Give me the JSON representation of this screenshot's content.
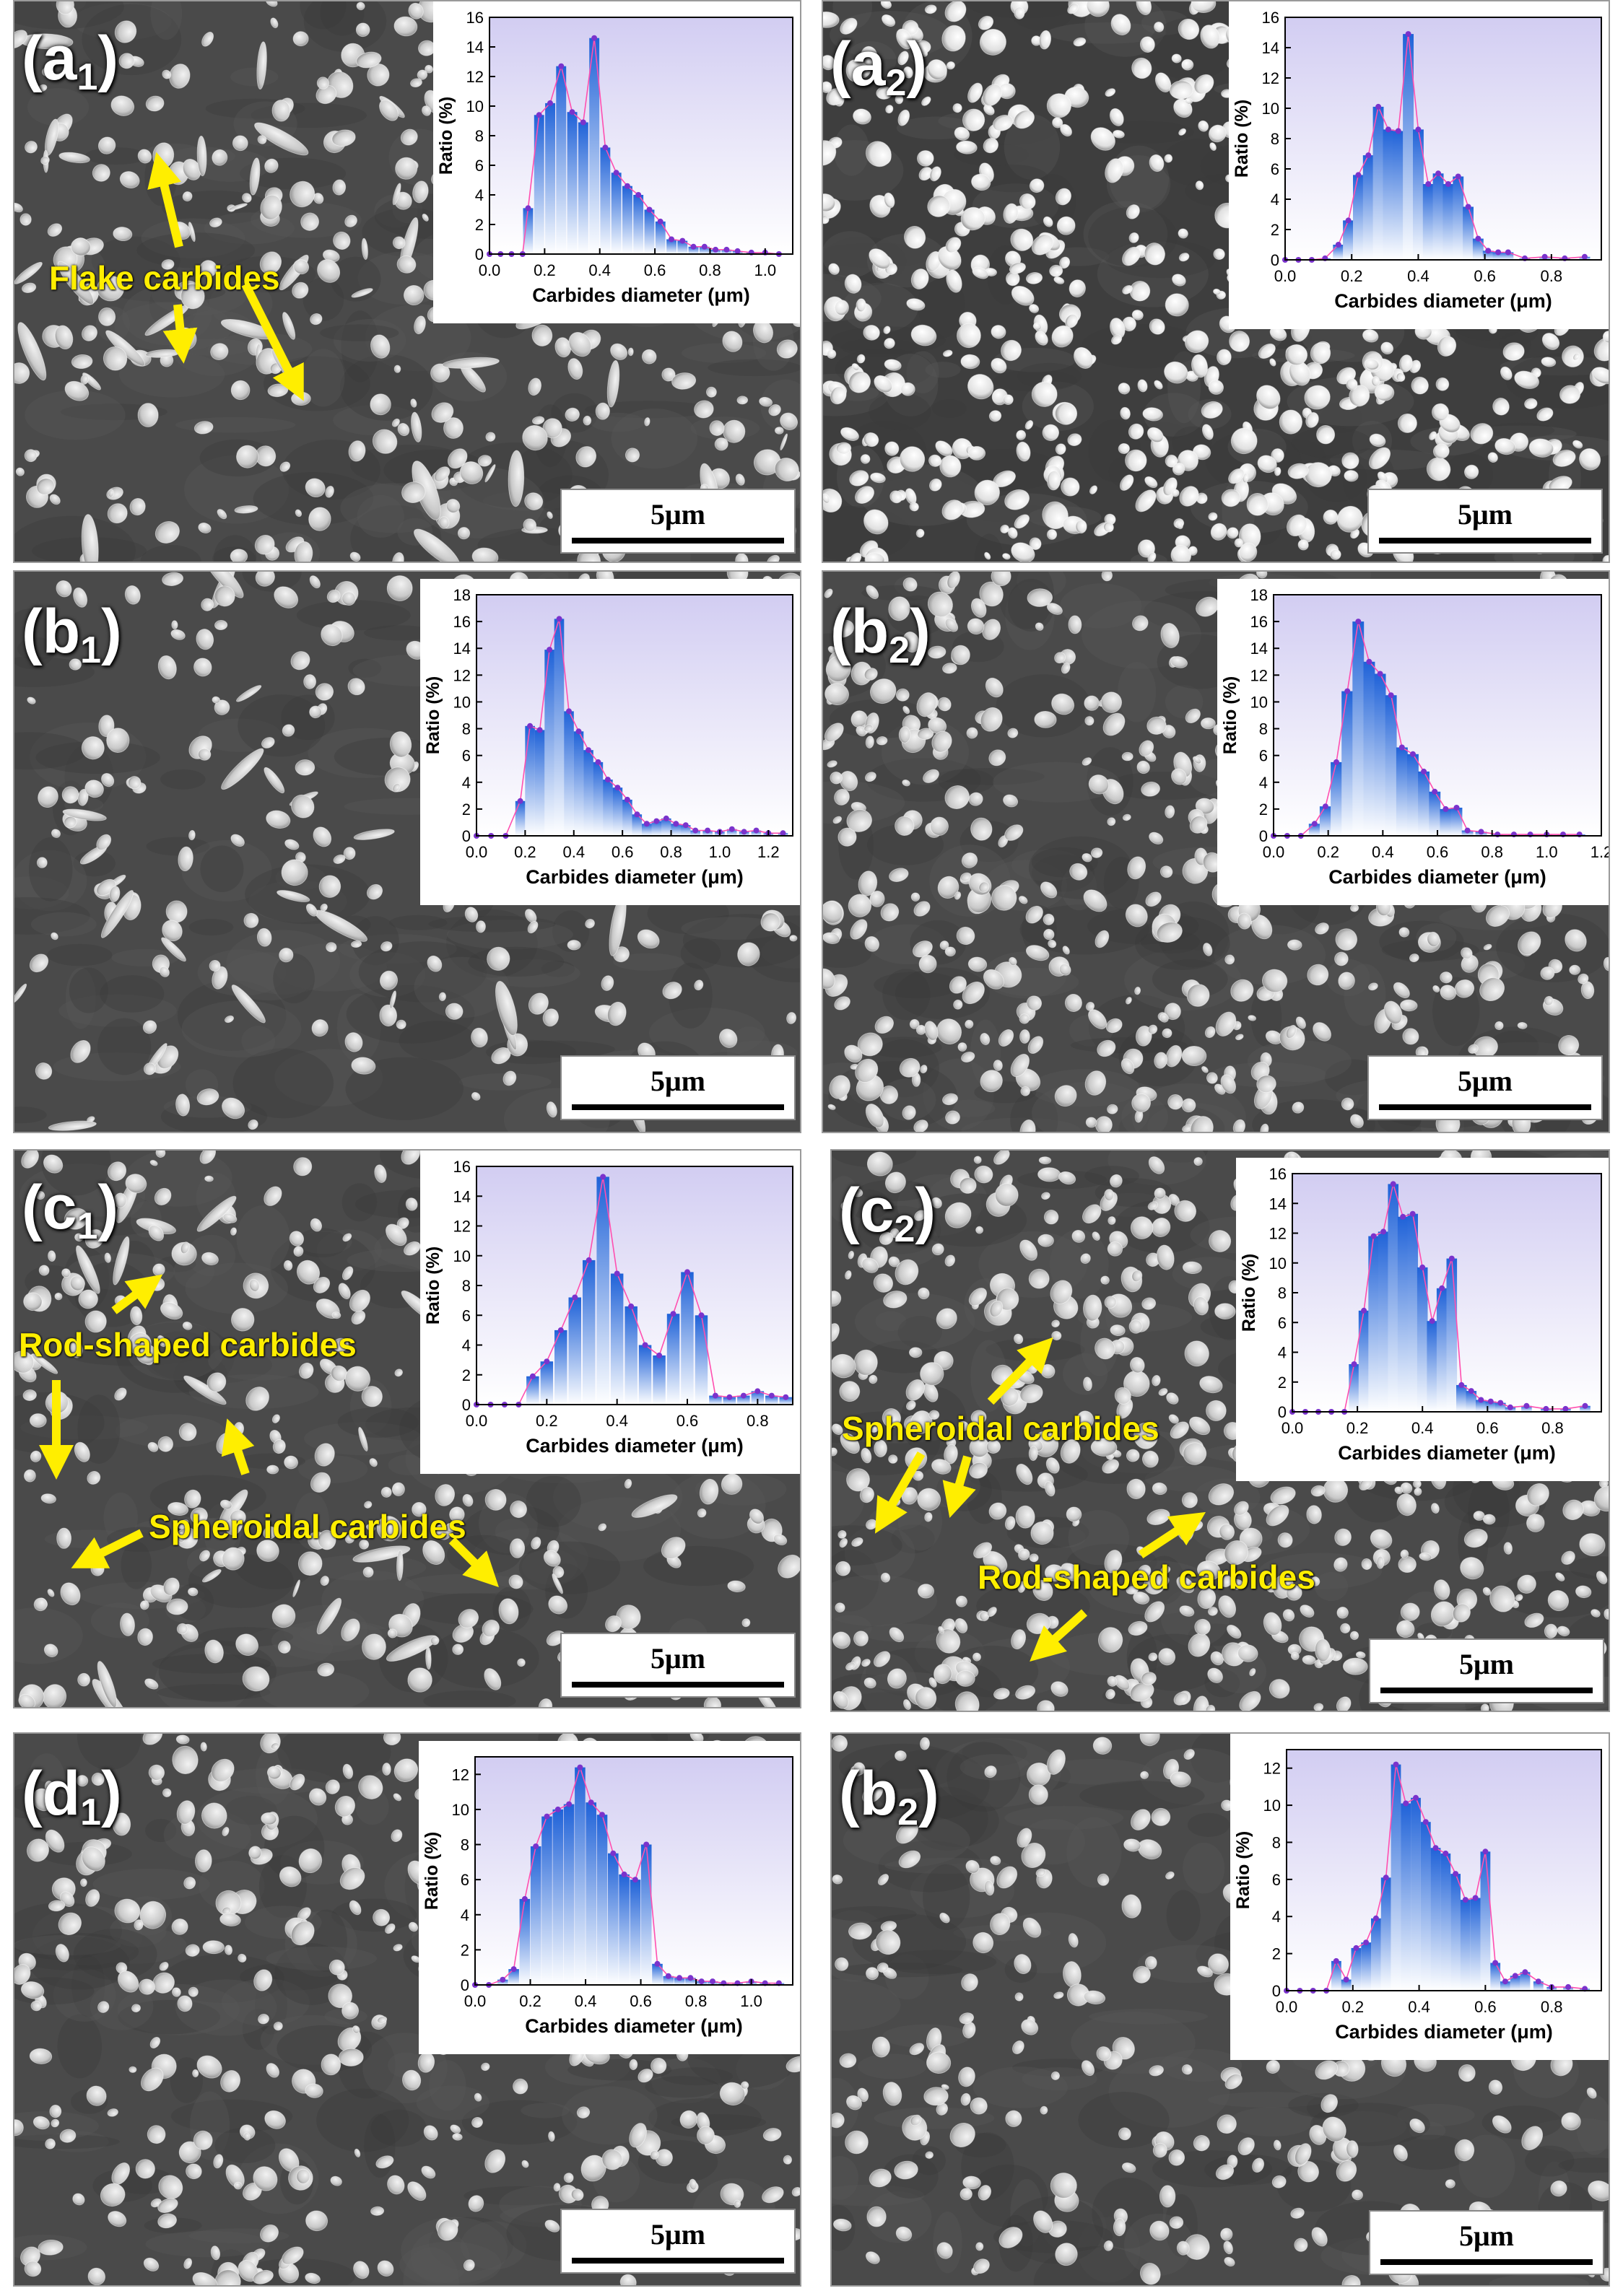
{
  "scale_bar_text": "5μm",
  "colors": {
    "bar_top": "#1f62d8",
    "bar_bottom": "#ffffff",
    "line": "#ff4fb0",
    "marker": "#7a33cc",
    "plot_bg_top": "#d2cdf2",
    "plot_bg_bottom": "#ffffff",
    "annotation": "#ffee00"
  },
  "panels": [
    {
      "id": "a1",
      "label_main": "(a",
      "label_sub": "1",
      "label_close": ")",
      "annotations": [
        "Flake carbides"
      ]
    },
    {
      "id": "a2",
      "label_main": "(a",
      "label_sub": "2",
      "label_close": ")",
      "annotations": []
    },
    {
      "id": "b1",
      "label_main": "(b",
      "label_sub": "1",
      "label_close": ")",
      "annotations": []
    },
    {
      "id": "b2",
      "label_main": "(b",
      "label_sub": "2",
      "label_close": ")",
      "annotations": []
    },
    {
      "id": "c1",
      "label_main": "(c",
      "label_sub": "1",
      "label_close": ")",
      "annotations": [
        "Rod-shaped carbides",
        "Spheroidal carbides"
      ]
    },
    {
      "id": "c2",
      "label_main": "(c",
      "label_sub": "2",
      "label_close": ")",
      "annotations": [
        "Spheroidal carbides",
        "Rod-shaped carbides"
      ]
    },
    {
      "id": "d1",
      "label_main": "(d",
      "label_sub": "1",
      "label_close": ")",
      "annotations": []
    },
    {
      "id": "d2",
      "label_main": "(b",
      "label_sub": "2",
      "label_close": ")",
      "annotations": []
    }
  ],
  "chart_data": [
    {
      "panel": "a1",
      "type": "bar",
      "xlabel": "Carbides diameter (μm)",
      "ylabel": "Ratio (%)",
      "xlim": [
        0,
        1.1
      ],
      "ylim": [
        0,
        16
      ],
      "xticks": [
        0.0,
        0.2,
        0.4,
        0.6,
        0.8,
        1.0
      ],
      "yticks": [
        0,
        2,
        4,
        6,
        8,
        10,
        12,
        14,
        16
      ],
      "x": [
        0.0,
        0.04,
        0.08,
        0.12,
        0.14,
        0.18,
        0.22,
        0.26,
        0.3,
        0.34,
        0.38,
        0.42,
        0.46,
        0.5,
        0.54,
        0.58,
        0.62,
        0.66,
        0.7,
        0.74,
        0.78,
        0.82,
        0.86,
        0.9,
        0.95,
        1.0,
        1.05
      ],
      "values": [
        0,
        0,
        0,
        0,
        3.1,
        9.4,
        10.2,
        12.7,
        9.6,
        8.9,
        14.6,
        7.2,
        5.5,
        4.6,
        4.0,
        3.0,
        2.2,
        1.0,
        0.9,
        0.5,
        0.5,
        0.3,
        0.3,
        0.2,
        0.1,
        0.1,
        0
      ]
    },
    {
      "panel": "a2",
      "type": "bar",
      "xlabel": "Carbides diameter (μm)",
      "ylabel": "Ratio (%)",
      "xlim": [
        0,
        0.95
      ],
      "ylim": [
        0,
        16
      ],
      "xticks": [
        0.0,
        0.2,
        0.4,
        0.6,
        0.8
      ],
      "yticks": [
        0,
        2,
        4,
        6,
        8,
        10,
        12,
        14,
        16
      ],
      "x": [
        0.0,
        0.04,
        0.08,
        0.12,
        0.16,
        0.19,
        0.22,
        0.25,
        0.28,
        0.31,
        0.34,
        0.37,
        0.4,
        0.43,
        0.46,
        0.49,
        0.52,
        0.55,
        0.58,
        0.61,
        0.64,
        0.67,
        0.72,
        0.78,
        0.84,
        0.9
      ],
      "values": [
        0,
        0,
        0,
        0.1,
        1.0,
        2.6,
        5.6,
        6.9,
        10.1,
        8.6,
        8.5,
        14.9,
        8.6,
        5.0,
        5.7,
        5.0,
        5.5,
        3.5,
        1.4,
        0.6,
        0.5,
        0.5,
        0.1,
        0.2,
        0.1,
        0.2
      ]
    },
    {
      "panel": "b1",
      "type": "bar",
      "xlabel": "Carbides diameter (μm)",
      "ylabel": "Ratio (%)",
      "xlim": [
        0,
        1.3
      ],
      "ylim": [
        0,
        18
      ],
      "xticks": [
        0.0,
        0.2,
        0.4,
        0.6,
        0.8,
        1.0,
        1.2
      ],
      "yticks": [
        0,
        2,
        4,
        6,
        8,
        10,
        12,
        14,
        16,
        18
      ],
      "x": [
        0.0,
        0.06,
        0.12,
        0.18,
        0.22,
        0.26,
        0.3,
        0.34,
        0.38,
        0.42,
        0.46,
        0.5,
        0.54,
        0.58,
        0.62,
        0.66,
        0.7,
        0.74,
        0.78,
        0.82,
        0.86,
        0.9,
        0.95,
        1.0,
        1.05,
        1.1,
        1.15,
        1.2,
        1.26
      ],
      "values": [
        0,
        0,
        0,
        2.6,
        8.2,
        7.9,
        13.9,
        16.2,
        9.3,
        7.8,
        6.4,
        5.5,
        4.2,
        3.6,
        2.7,
        1.6,
        0.9,
        1.1,
        1.3,
        0.9,
        0.8,
        0.4,
        0.4,
        0.3,
        0.5,
        0.3,
        0.4,
        0.2,
        0.2
      ]
    },
    {
      "panel": "b2",
      "type": "bar",
      "xlabel": "Carbides diameter (μm)",
      "ylabel": "Ratio (%)",
      "xlim": [
        0,
        1.2
      ],
      "ylim": [
        0,
        18
      ],
      "xticks": [
        0.0,
        0.2,
        0.4,
        0.6,
        0.8,
        1.0,
        1.2
      ],
      "yticks": [
        0,
        2,
        4,
        6,
        8,
        10,
        12,
        14,
        16,
        18
      ],
      "x": [
        0.0,
        0.05,
        0.1,
        0.15,
        0.19,
        0.23,
        0.27,
        0.31,
        0.35,
        0.39,
        0.43,
        0.47,
        0.51,
        0.55,
        0.59,
        0.63,
        0.67,
        0.71,
        0.76,
        0.82,
        0.88,
        0.94,
        1.0,
        1.06,
        1.12
      ],
      "values": [
        0,
        0,
        0,
        0.9,
        2.2,
        5.5,
        10.8,
        16.0,
        13.0,
        12.1,
        10.5,
        6.6,
        6.1,
        4.8,
        3.3,
        2.0,
        2.1,
        0.4,
        0.3,
        0.1,
        0.1,
        0.1,
        0.1,
        0.1,
        0.1
      ]
    },
    {
      "panel": "c1",
      "type": "bar",
      "xlabel": "Carbides diameter (μm)",
      "ylabel": "Ratio (%)",
      "xlim": [
        0,
        0.9
      ],
      "ylim": [
        0,
        16
      ],
      "xticks": [
        0.0,
        0.2,
        0.4,
        0.6,
        0.8
      ],
      "yticks": [
        0,
        2,
        4,
        6,
        8,
        10,
        12,
        14,
        16
      ],
      "x": [
        0.0,
        0.04,
        0.08,
        0.12,
        0.16,
        0.2,
        0.24,
        0.28,
        0.32,
        0.36,
        0.4,
        0.44,
        0.48,
        0.52,
        0.56,
        0.6,
        0.64,
        0.68,
        0.72,
        0.76,
        0.8,
        0.84,
        0.88
      ],
      "values": [
        0,
        0,
        0,
        0,
        1.9,
        2.9,
        5.0,
        7.2,
        9.7,
        15.3,
        8.8,
        6.6,
        4.0,
        3.3,
        6.1,
        8.9,
        6.0,
        0.6,
        0.5,
        0.6,
        0.9,
        0.6,
        0.5
      ]
    },
    {
      "panel": "c2",
      "type": "bar",
      "xlabel": "Carbides diameter (μm)",
      "ylabel": "Ratio (%)",
      "xlim": [
        0,
        0.95
      ],
      "ylim": [
        0,
        16
      ],
      "xticks": [
        0.0,
        0.2,
        0.4,
        0.6,
        0.8
      ],
      "yticks": [
        0,
        2,
        4,
        6,
        8,
        10,
        12,
        14,
        16
      ],
      "x": [
        0.0,
        0.04,
        0.08,
        0.12,
        0.16,
        0.19,
        0.22,
        0.25,
        0.28,
        0.31,
        0.34,
        0.37,
        0.4,
        0.43,
        0.46,
        0.49,
        0.52,
        0.55,
        0.58,
        0.61,
        0.64,
        0.67,
        0.72,
        0.78,
        0.84,
        0.9
      ],
      "values": [
        0,
        0,
        0,
        0,
        0,
        3.2,
        6.8,
        11.8,
        12.1,
        15.3,
        13.1,
        13.3,
        9.7,
        6.1,
        8.3,
        10.3,
        1.8,
        1.4,
        0.8,
        0.7,
        0.6,
        0.3,
        0.4,
        0.2,
        0.2,
        0.4
      ]
    },
    {
      "panel": "d1",
      "type": "bar",
      "xlabel": "Carbides diameter (μm)",
      "ylabel": "Ratio (%)",
      "xlim": [
        0,
        1.15
      ],
      "ylim": [
        0,
        13
      ],
      "xticks": [
        0.0,
        0.2,
        0.4,
        0.6,
        0.8,
        1.0
      ],
      "yticks": [
        0,
        2,
        4,
        6,
        8,
        10,
        12
      ],
      "x": [
        0.0,
        0.05,
        0.1,
        0.14,
        0.18,
        0.22,
        0.26,
        0.3,
        0.34,
        0.38,
        0.42,
        0.46,
        0.5,
        0.54,
        0.58,
        0.62,
        0.66,
        0.7,
        0.74,
        0.78,
        0.82,
        0.86,
        0.9,
        0.95,
        1.0,
        1.05,
        1.1
      ],
      "values": [
        0,
        0,
        0.3,
        0.9,
        4.9,
        7.9,
        9.6,
        10.0,
        10.3,
        12.4,
        10.4,
        9.7,
        7.5,
        6.3,
        6.0,
        8.0,
        1.2,
        0.5,
        0.4,
        0.4,
        0.2,
        0.2,
        0.1,
        0.1,
        0.2,
        0.1,
        0.1
      ]
    },
    {
      "panel": "d2",
      "type": "bar",
      "xlabel": "Carbides diameter (μm)",
      "ylabel": "Ratio (%)",
      "xlim": [
        0,
        0.95
      ],
      "ylim": [
        0,
        13
      ],
      "xticks": [
        0.0,
        0.2,
        0.4,
        0.6,
        0.8
      ],
      "yticks": [
        0,
        2,
        4,
        6,
        8,
        10,
        12
      ],
      "x": [
        0.0,
        0.04,
        0.08,
        0.12,
        0.15,
        0.18,
        0.21,
        0.24,
        0.27,
        0.3,
        0.33,
        0.36,
        0.39,
        0.42,
        0.45,
        0.48,
        0.51,
        0.54,
        0.57,
        0.6,
        0.63,
        0.66,
        0.69,
        0.72,
        0.76,
        0.8,
        0.85,
        0.9
      ],
      "values": [
        0,
        0,
        0,
        0,
        1.6,
        0.6,
        2.3,
        2.6,
        3.9,
        6.1,
        12.2,
        10.1,
        10.4,
        9.1,
        7.7,
        7.4,
        6.3,
        4.9,
        5.0,
        7.5,
        1.5,
        0.5,
        0.8,
        1.0,
        0.5,
        0.2,
        0.2,
        0.1
      ]
    }
  ]
}
